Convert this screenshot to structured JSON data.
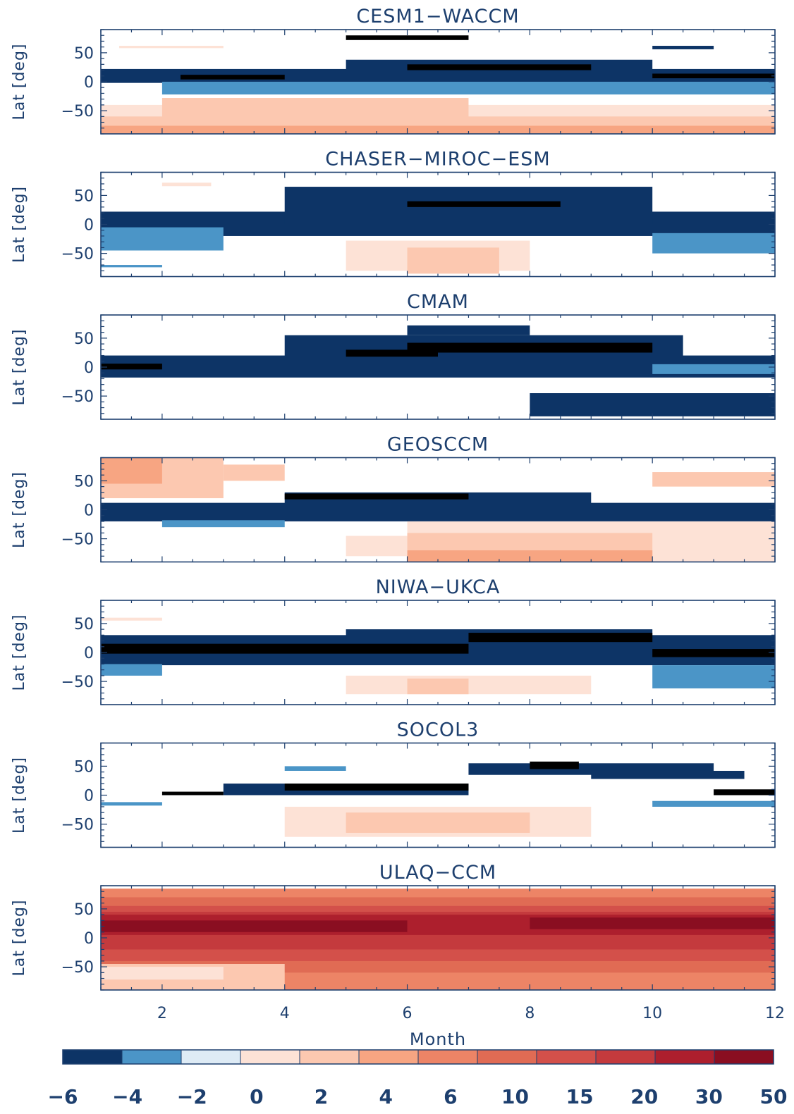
{
  "figure": {
    "xlabel": "Month",
    "ylabel": "Lat [deg]"
  },
  "colors": {
    "axis": "#1d3f6e"
  },
  "chart_data": {
    "type": "heatmap",
    "xlim": [
      1,
      12
    ],
    "ylim": [
      -90,
      90
    ],
    "x_ticks": [
      2,
      4,
      6,
      8,
      10,
      12
    ],
    "y_ticks": [
      50,
      0,
      -50
    ],
    "x_tick_labels": [
      "2",
      "4",
      "6",
      "8",
      "10",
      "12"
    ],
    "y_tick_labels": [
      "50",
      "0",
      "−50"
    ],
    "colorbar": {
      "levels": [
        -6,
        -4,
        -2,
        0,
        2,
        4,
        6,
        10,
        15,
        20,
        30,
        50
      ],
      "labels": [
        "−6",
        "−4",
        "−2",
        "0",
        "2",
        "4",
        "6",
        "10",
        "15",
        "20",
        "30",
        "50"
      ],
      "colors": [
        "#0d3466",
        "#4b95c7",
        "#deebf5",
        "#fde2d6",
        "#fcc8b0",
        "#f7a582",
        "#ed8466",
        "#e06b54",
        "#d3504a",
        "#c43a3d",
        "#ad1f2d",
        "#8a0e21"
      ]
    },
    "panels": [
      {
        "title": "CESM1−WACCM",
        "regions": [
          {
            "x": [
              1,
              12
            ],
            "lat": [
              -90,
              -40
            ],
            "c": 1
          },
          {
            "x": [
              1,
              12
            ],
            "lat": [
              -90,
              -60
            ],
            "c": 2
          },
          {
            "x": [
              1,
              12
            ],
            "lat": [
              -90,
              -76
            ],
            "c": 3
          },
          {
            "x": [
              2,
              7
            ],
            "lat": [
              -70,
              -28
            ],
            "c": 2
          },
          {
            "x": [
              1,
              12
            ],
            "lat": [
              -2,
              22
            ],
            "c": -3
          },
          {
            "x": [
              2,
              12
            ],
            "lat": [
              -22,
              0
            ],
            "c": -2
          },
          {
            "x": [
              5,
              10
            ],
            "lat": [
              0,
              38
            ],
            "c": -3
          },
          {
            "x": [
              6,
              9
            ],
            "lat": [
              20,
              30
            ],
            "c": -4
          },
          {
            "x": [
              2.3,
              4
            ],
            "lat": [
              4,
              12
            ],
            "c": -4
          },
          {
            "x": [
              10,
              12
            ],
            "lat": [
              6,
              14
            ],
            "c": -4
          },
          {
            "x": [
              5,
              7
            ],
            "lat": [
              72,
              80
            ],
            "c": -4
          },
          {
            "x": [
              10,
              11
            ],
            "lat": [
              56,
              62
            ],
            "c": -3
          },
          {
            "x": [
              1.3,
              3
            ],
            "lat": [
              58,
              62
            ],
            "c": 1
          }
        ]
      },
      {
        "title": "CHASER−MIROC−ESM",
        "regions": [
          {
            "x": [
              1,
              12
            ],
            "lat": [
              -20,
              22
            ],
            "c": -3
          },
          {
            "x": [
              4,
              10
            ],
            "lat": [
              0,
              65
            ],
            "c": -3
          },
          {
            "x": [
              1,
              3
            ],
            "lat": [
              -45,
              -5
            ],
            "c": -2
          },
          {
            "x": [
              10,
              12
            ],
            "lat": [
              -50,
              -15
            ],
            "c": -2
          },
          {
            "x": [
              6,
              8.5
            ],
            "lat": [
              30,
              40
            ],
            "c": -4
          },
          {
            "x": [
              5,
              8
            ],
            "lat": [
              -80,
              -28
            ],
            "c": 1
          },
          {
            "x": [
              6,
              7.5
            ],
            "lat": [
              -85,
              -40
            ],
            "c": 2
          },
          {
            "x": [
              2,
              2.8
            ],
            "lat": [
              66,
              72
            ],
            "c": 1
          },
          {
            "x": [
              1,
              2
            ],
            "lat": [
              -74,
              -70
            ],
            "c": -2
          }
        ]
      },
      {
        "title": "CMAM",
        "regions": [
          {
            "x": [
              1,
              12
            ],
            "lat": [
              -18,
              20
            ],
            "c": -3
          },
          {
            "x": [
              4,
              10.5
            ],
            "lat": [
              10,
              55
            ],
            "c": -3
          },
          {
            "x": [
              6,
              8
            ],
            "lat": [
              55,
              72
            ],
            "c": -3
          },
          {
            "x": [
              6,
              10
            ],
            "lat": [
              25,
              42
            ],
            "c": -4
          },
          {
            "x": [
              1,
              2
            ],
            "lat": [
              -4,
              6
            ],
            "c": -4
          },
          {
            "x": [
              5,
              6.5
            ],
            "lat": [
              18,
              30
            ],
            "c": -4
          },
          {
            "x": [
              8,
              12
            ],
            "lat": [
              -85,
              -45
            ],
            "c": -3
          },
          {
            "x": [
              10,
              12
            ],
            "lat": [
              -12,
              5
            ],
            "c": -2
          }
        ]
      },
      {
        "title": "GEOSCCM",
        "regions": [
          {
            "x": [
              1,
              3
            ],
            "lat": [
              20,
              90
            ],
            "c": 2
          },
          {
            "x": [
              1,
              2
            ],
            "lat": [
              45,
              90
            ],
            "c": 3
          },
          {
            "x": [
              3,
              4
            ],
            "lat": [
              50,
              78
            ],
            "c": 2
          },
          {
            "x": [
              1,
              12
            ],
            "lat": [
              -20,
              12
            ],
            "c": -3
          },
          {
            "x": [
              4,
              9
            ],
            "lat": [
              8,
              30
            ],
            "c": -3
          },
          {
            "x": [
              4,
              7
            ],
            "lat": [
              18,
              28
            ],
            "c": -4
          },
          {
            "x": [
              2,
              4
            ],
            "lat": [
              -30,
              -18
            ],
            "c": -2
          },
          {
            "x": [
              6,
              12
            ],
            "lat": [
              -90,
              -20
            ],
            "c": 1
          },
          {
            "x": [
              6,
              10
            ],
            "lat": [
              -90,
              -40
            ],
            "c": 2
          },
          {
            "x": [
              6,
              10
            ],
            "lat": [
              -90,
              -70
            ],
            "c": 3
          },
          {
            "x": [
              5,
              6
            ],
            "lat": [
              -80,
              -45
            ],
            "c": 1
          },
          {
            "x": [
              10,
              12
            ],
            "lat": [
              40,
              65
            ],
            "c": 2
          }
        ]
      },
      {
        "title": "NIWA−UKCA",
        "regions": [
          {
            "x": [
              1,
              12
            ],
            "lat": [
              -22,
              30
            ],
            "c": -3
          },
          {
            "x": [
              5,
              10
            ],
            "lat": [
              25,
              40
            ],
            "c": -3
          },
          {
            "x": [
              1,
              7
            ],
            "lat": [
              -2,
              15
            ],
            "c": -4
          },
          {
            "x": [
              7,
              10
            ],
            "lat": [
              18,
              34
            ],
            "c": -4
          },
          {
            "x": [
              10,
              12
            ],
            "lat": [
              -8,
              6
            ],
            "c": -4
          },
          {
            "x": [
              10,
              12
            ],
            "lat": [
              -62,
              -22
            ],
            "c": -2
          },
          {
            "x": [
              1,
              2
            ],
            "lat": [
              -40,
              -20
            ],
            "c": -2
          },
          {
            "x": [
              5,
              9
            ],
            "lat": [
              -72,
              -40
            ],
            "c": 1
          },
          {
            "x": [
              6,
              7
            ],
            "lat": [
              -72,
              -45
            ],
            "c": 2
          },
          {
            "x": [
              1,
              2
            ],
            "lat": [
              55,
              60
            ],
            "c": 1
          }
        ]
      },
      {
        "title": "SOCOL3",
        "regions": [
          {
            "x": [
              3,
              7
            ],
            "lat": [
              0,
              20
            ],
            "c": -3
          },
          {
            "x": [
              4,
              7
            ],
            "lat": [
              8,
              20
            ],
            "c": -4
          },
          {
            "x": [
              2,
              3
            ],
            "lat": [
              0,
              6
            ],
            "c": -4
          },
          {
            "x": [
              7,
              11
            ],
            "lat": [
              35,
              55
            ],
            "c": -3
          },
          {
            "x": [
              8,
              8.8
            ],
            "lat": [
              45,
              58
            ],
            "c": -4
          },
          {
            "x": [
              10,
              12
            ],
            "lat": [
              -20,
              -10
            ],
            "c": -2
          },
          {
            "x": [
              11,
              12
            ],
            "lat": [
              0,
              10
            ],
            "c": -4
          },
          {
            "x": [
              4,
              9
            ],
            "lat": [
              -72,
              -20
            ],
            "c": 1
          },
          {
            "x": [
              5,
              8
            ],
            "lat": [
              -65,
              -30
            ],
            "c": 2
          },
          {
            "x": [
              4,
              5
            ],
            "lat": [
              42,
              50
            ],
            "c": -2
          },
          {
            "x": [
              9,
              11.5
            ],
            "lat": [
              28,
              42
            ],
            "c": -3
          },
          {
            "x": [
              1,
              2
            ],
            "lat": [
              -18,
              -12
            ],
            "c": -2
          }
        ]
      },
      {
        "title": "ULAQ−CCM",
        "regions": [
          {
            "x": [
              1,
              12
            ],
            "lat": [
              -90,
              85
            ],
            "c": 4
          },
          {
            "x": [
              1,
              12
            ],
            "lat": [
              -60,
              70
            ],
            "c": 5
          },
          {
            "x": [
              1,
              12
            ],
            "lat": [
              -40,
              55
            ],
            "c": 6
          },
          {
            "x": [
              1,
              12
            ],
            "lat": [
              -20,
              45
            ],
            "c": 7
          },
          {
            "x": [
              1,
              12
            ],
            "lat": [
              5,
              40
            ],
            "c": 8
          },
          {
            "x": [
              1,
              6
            ],
            "lat": [
              10,
              30
            ],
            "c": 9
          },
          {
            "x": [
              8,
              12
            ],
            "lat": [
              15,
              35
            ],
            "c": 9
          },
          {
            "x": [
              1,
              4
            ],
            "lat": [
              -90,
              -45
            ],
            "c": 2
          },
          {
            "x": [
              1,
              3
            ],
            "lat": [
              -72,
              -50
            ],
            "c": 1
          }
        ]
      }
    ]
  }
}
